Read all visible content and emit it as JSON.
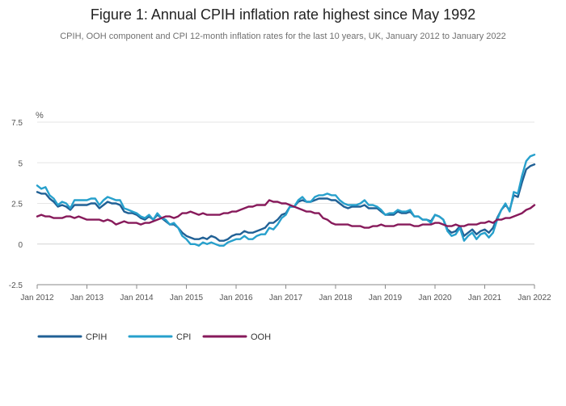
{
  "chart_data": {
    "type": "line",
    "title": "Figure 1: Annual CPIH inflation rate highest since May 1992",
    "subtitle": "CPIH, OOH component and CPI 12-month inflation rates for the last 10 years, UK, January 2012 to January 2022",
    "ylabel": "%",
    "xlabel": "",
    "ylim": [
      -2.5,
      7.5
    ],
    "yticks": [
      -2.5,
      0,
      2.5,
      5,
      7.5
    ],
    "yticklabels": [
      "-2.5",
      "0",
      "2.5",
      "5",
      "7.5"
    ],
    "xlim": [
      "2012-01",
      "2022-01"
    ],
    "xticks": [
      "2012-01",
      "2013-01",
      "2014-01",
      "2015-01",
      "2016-01",
      "2017-01",
      "2018-01",
      "2019-01",
      "2020-01",
      "2021-01",
      "2022-01"
    ],
    "xticklabels": [
      "Jan 2012",
      "Jan 2013",
      "Jan 2014",
      "Jan 2015",
      "Jan 2016",
      "Jan 2017",
      "Jan 2018",
      "Jan 2019",
      "Jan 2020",
      "Jan 2021",
      "Jan 2022"
    ],
    "grid": true,
    "legend": "bottom-left",
    "x_start": "2012-01",
    "frequency": "monthly",
    "series": [
      {
        "name": "CPIH",
        "color": "#206095",
        "values": [
          3.2,
          3.1,
          3.1,
          2.8,
          2.6,
          2.3,
          2.4,
          2.3,
          2.1,
          2.4,
          2.4,
          2.4,
          2.4,
          2.5,
          2.5,
          2.2,
          2.4,
          2.6,
          2.5,
          2.5,
          2.4,
          2.0,
          1.9,
          1.9,
          1.8,
          1.6,
          1.5,
          1.7,
          1.5,
          1.8,
          1.6,
          1.4,
          1.2,
          1.2,
          1.0,
          0.7,
          0.5,
          0.4,
          0.3,
          0.3,
          0.4,
          0.3,
          0.5,
          0.4,
          0.2,
          0.2,
          0.3,
          0.5,
          0.6,
          0.6,
          0.8,
          0.7,
          0.7,
          0.8,
          0.9,
          1.0,
          1.3,
          1.3,
          1.5,
          1.8,
          1.9,
          2.3,
          2.3,
          2.6,
          2.7,
          2.6,
          2.6,
          2.7,
          2.8,
          2.8,
          2.8,
          2.7,
          2.7,
          2.5,
          2.3,
          2.2,
          2.3,
          2.3,
          2.3,
          2.4,
          2.2,
          2.2,
          2.2,
          2.0,
          1.8,
          1.8,
          1.8,
          2.0,
          1.9,
          1.9,
          2.0,
          1.7,
          1.7,
          1.5,
          1.5,
          1.4,
          1.8,
          1.7,
          1.5,
          0.9,
          0.7,
          0.8,
          1.1,
          0.5,
          0.7,
          0.9,
          0.6,
          0.8,
          0.9,
          0.7,
          1.0,
          1.6,
          2.1,
          2.4,
          2.1,
          3.0,
          2.9,
          3.8,
          4.6,
          4.8,
          4.9
        ]
      },
      {
        "name": "CPI",
        "color": "#27a0cc",
        "values": [
          3.6,
          3.4,
          3.5,
          3.0,
          2.8,
          2.4,
          2.6,
          2.5,
          2.2,
          2.7,
          2.7,
          2.7,
          2.7,
          2.8,
          2.8,
          2.4,
          2.7,
          2.9,
          2.8,
          2.7,
          2.7,
          2.2,
          2.1,
          2.0,
          1.9,
          1.7,
          1.6,
          1.8,
          1.5,
          1.9,
          1.6,
          1.5,
          1.2,
          1.3,
          1.0,
          0.5,
          0.3,
          0.0,
          0.0,
          -0.1,
          0.1,
          0.0,
          0.1,
          0.0,
          -0.1,
          -0.1,
          0.1,
          0.2,
          0.3,
          0.3,
          0.5,
          0.3,
          0.3,
          0.5,
          0.6,
          0.6,
          1.0,
          0.9,
          1.2,
          1.6,
          1.8,
          2.3,
          2.3,
          2.7,
          2.9,
          2.6,
          2.6,
          2.9,
          3.0,
          3.0,
          3.1,
          3.0,
          3.0,
          2.7,
          2.5,
          2.4,
          2.4,
          2.4,
          2.5,
          2.7,
          2.4,
          2.4,
          2.3,
          2.1,
          1.8,
          1.9,
          1.9,
          2.1,
          2.0,
          2.0,
          2.1,
          1.7,
          1.7,
          1.5,
          1.5,
          1.3,
          1.8,
          1.7,
          1.5,
          0.8,
          0.5,
          0.6,
          1.0,
          0.2,
          0.5,
          0.7,
          0.3,
          0.6,
          0.7,
          0.4,
          0.7,
          1.5,
          2.1,
          2.5,
          2.0,
          3.2,
          3.1,
          4.2,
          5.1,
          5.4,
          5.5
        ]
      },
      {
        "name": "OOH",
        "color": "#871a5b",
        "values": [
          1.7,
          1.8,
          1.7,
          1.7,
          1.6,
          1.6,
          1.6,
          1.7,
          1.7,
          1.6,
          1.7,
          1.6,
          1.5,
          1.5,
          1.5,
          1.5,
          1.4,
          1.5,
          1.4,
          1.2,
          1.3,
          1.4,
          1.3,
          1.3,
          1.3,
          1.2,
          1.3,
          1.3,
          1.4,
          1.5,
          1.6,
          1.7,
          1.7,
          1.6,
          1.7,
          1.9,
          1.9,
          2.0,
          1.9,
          1.8,
          1.9,
          1.8,
          1.8,
          1.8,
          1.8,
          1.9,
          1.9,
          2.0,
          2.0,
          2.1,
          2.2,
          2.3,
          2.3,
          2.4,
          2.4,
          2.4,
          2.7,
          2.6,
          2.6,
          2.5,
          2.5,
          2.4,
          2.3,
          2.2,
          2.1,
          2.0,
          2.0,
          1.9,
          1.9,
          1.6,
          1.5,
          1.3,
          1.2,
          1.2,
          1.2,
          1.2,
          1.1,
          1.1,
          1.1,
          1.0,
          1.0,
          1.1,
          1.1,
          1.2,
          1.1,
          1.1,
          1.1,
          1.2,
          1.2,
          1.2,
          1.2,
          1.1,
          1.1,
          1.2,
          1.2,
          1.2,
          1.3,
          1.3,
          1.2,
          1.1,
          1.1,
          1.2,
          1.1,
          1.1,
          1.2,
          1.2,
          1.2,
          1.3,
          1.3,
          1.4,
          1.3,
          1.5,
          1.5,
          1.6,
          1.6,
          1.7,
          1.8,
          1.9,
          2.1,
          2.2,
          2.4
        ]
      }
    ]
  }
}
